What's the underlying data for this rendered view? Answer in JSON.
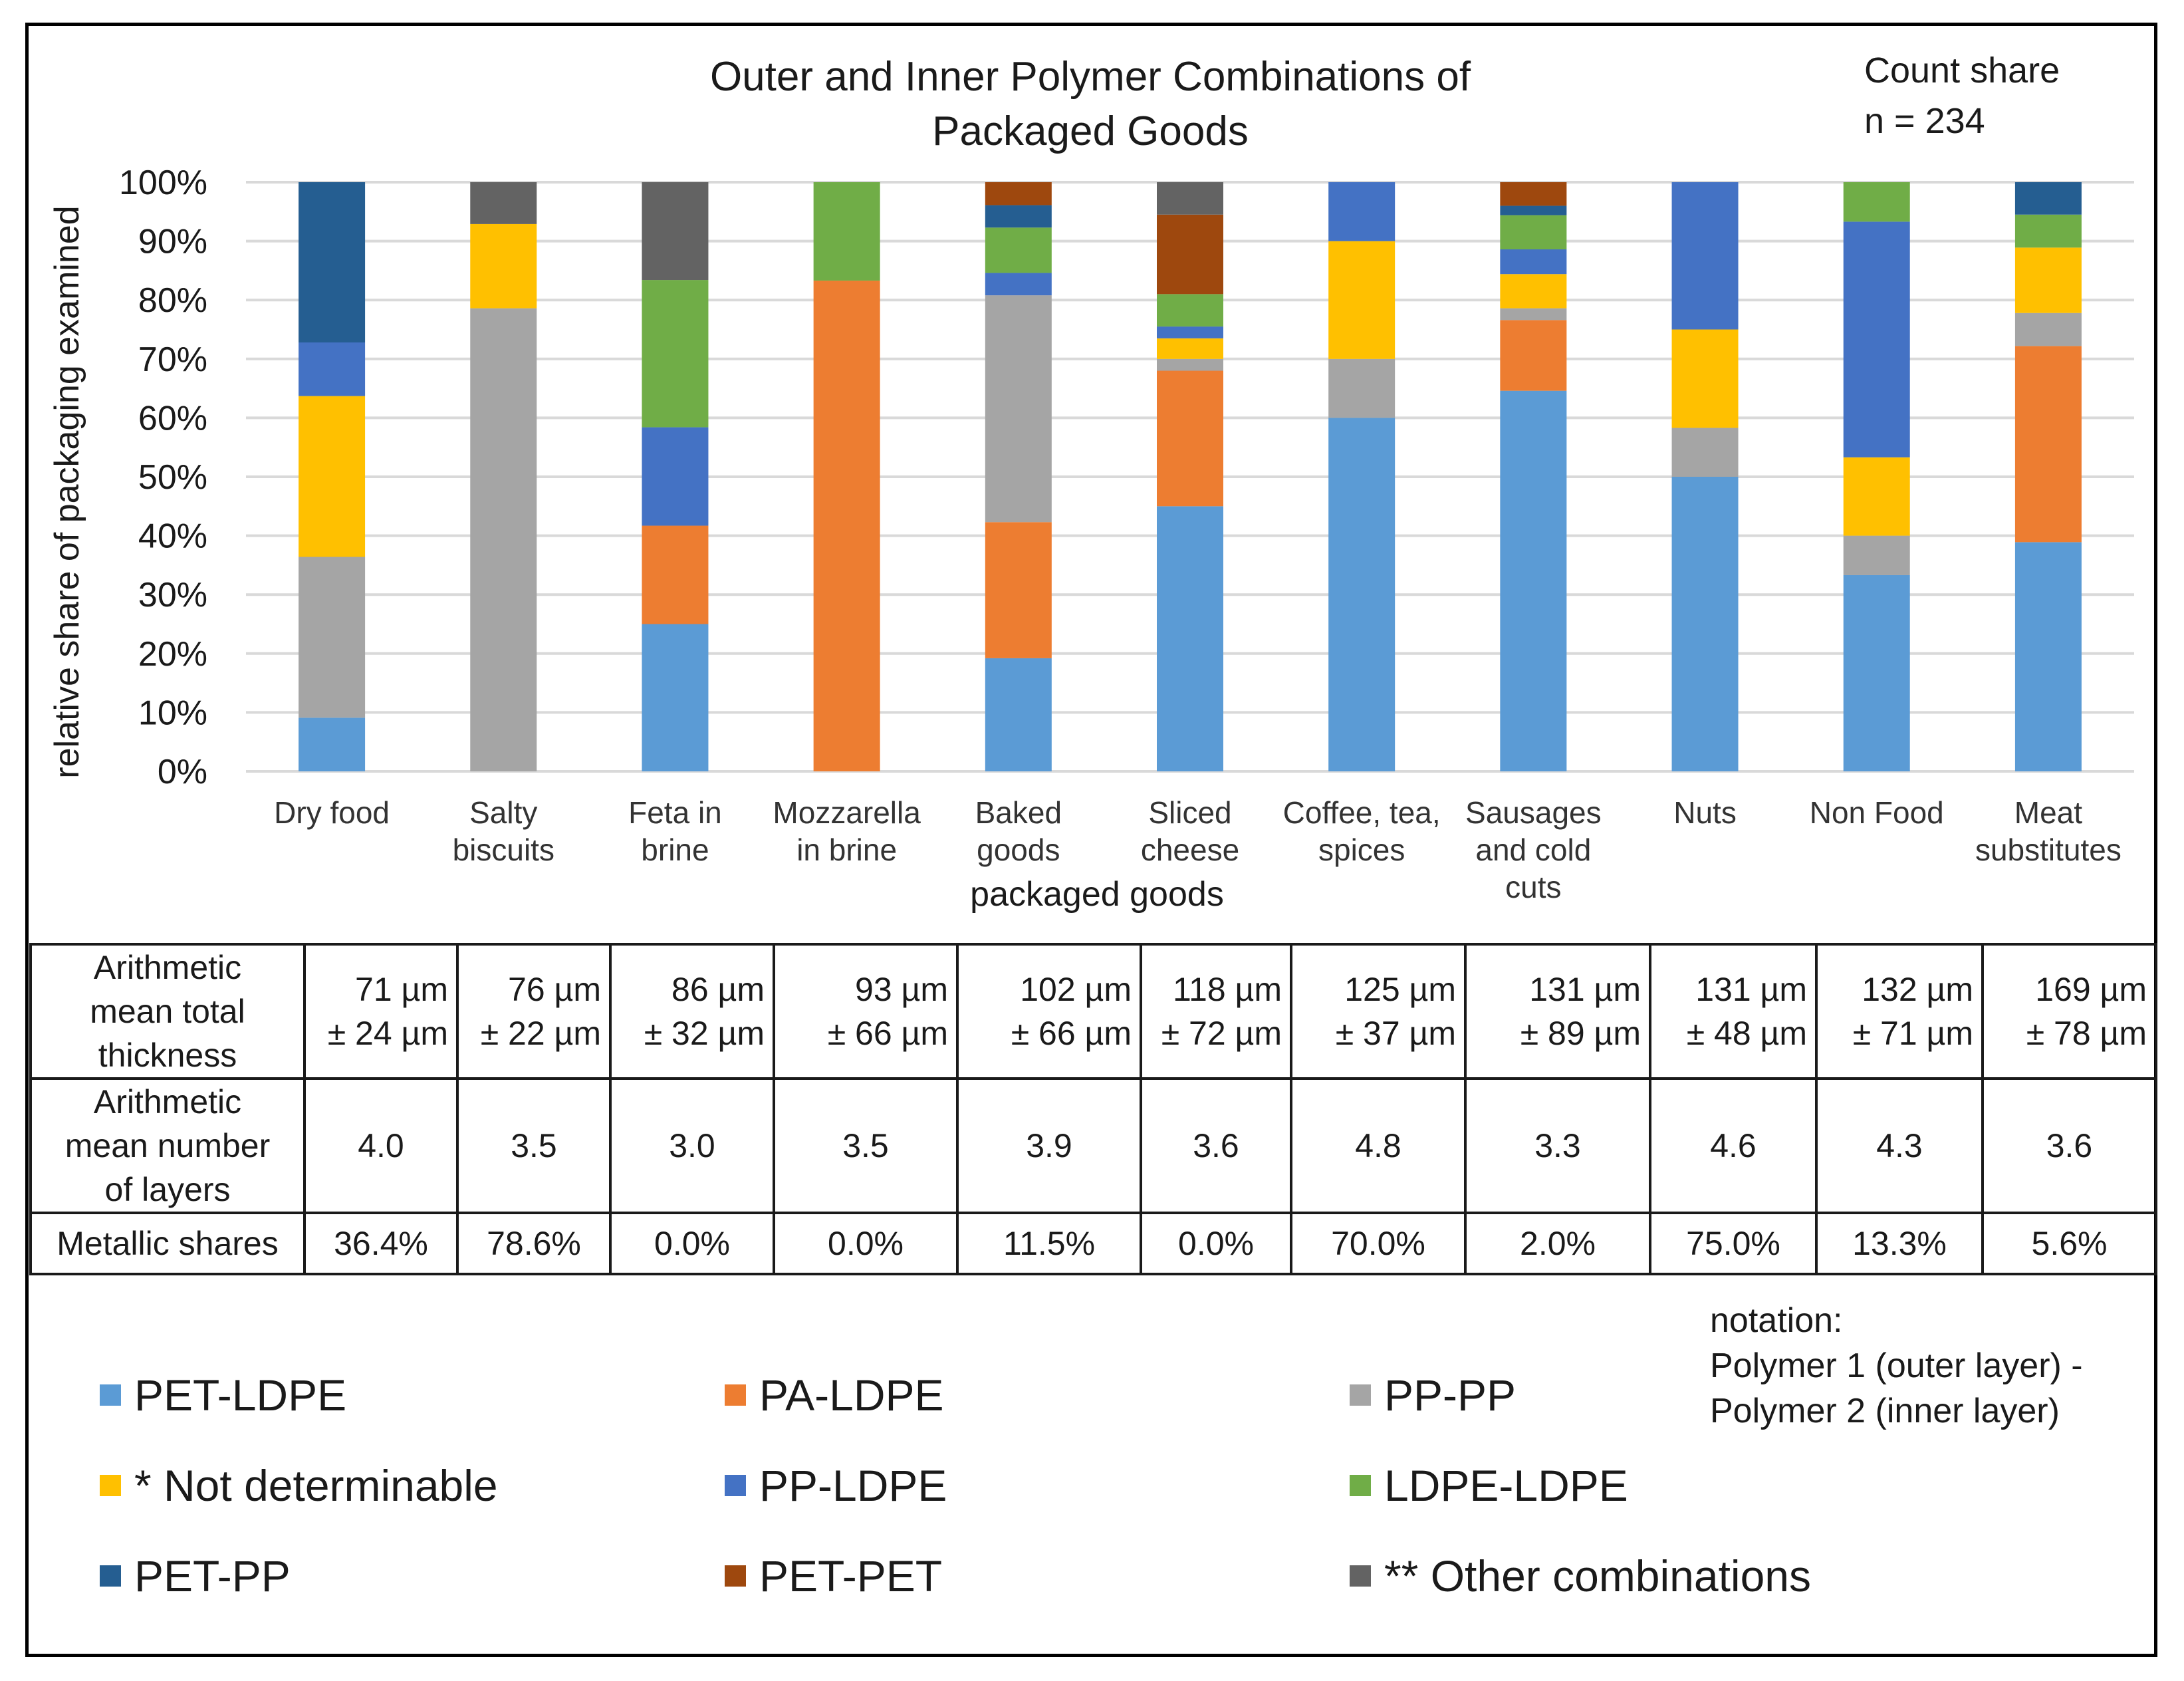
{
  "chart_data": {
    "type": "bar",
    "stacked": true,
    "title_lines": [
      "Outer and Inner Polymer Combinations of",
      "Packaged Goods"
    ],
    "note_lines": [
      "Count share",
      "n = 234"
    ],
    "xlabel": "packaged goods",
    "ylabel": "relative share of packaging examined",
    "ylim": [
      0,
      100
    ],
    "y_ticks": [
      "0%",
      "10%",
      "20%",
      "30%",
      "40%",
      "50%",
      "60%",
      "70%",
      "80%",
      "90%",
      "100%"
    ],
    "grid": true,
    "categories": [
      [
        "Dry food"
      ],
      [
        "Salty",
        "biscuits"
      ],
      [
        "Feta in",
        "brine"
      ],
      [
        "Mozzarella",
        "in brine"
      ],
      [
        "Baked",
        "goods"
      ],
      [
        "Sliced",
        "cheese"
      ],
      [
        "Coffee, tea,",
        "spices"
      ],
      [
        "Sausages",
        "and cold",
        "cuts"
      ],
      [
        "Nuts"
      ],
      [
        "Non Food"
      ],
      [
        "Meat",
        "substitutes"
      ]
    ],
    "series": [
      {
        "name": "PET-LDPE",
        "color": "#5b9bd5",
        "values": [
          9.1,
          0,
          25.0,
          0,
          19.2,
          45.0,
          60.0,
          64.6,
          50.0,
          33.3,
          38.9
        ]
      },
      {
        "name": "PA-LDPE",
        "color": "#ed7d31",
        "values": [
          0,
          0,
          16.7,
          83.3,
          23.1,
          23.0,
          0,
          12.0,
          0,
          0,
          33.3
        ]
      },
      {
        "name": "PP-PP",
        "color": "#a5a5a5",
        "values": [
          27.3,
          78.6,
          0,
          0,
          38.5,
          2.0,
          10.0,
          2.0,
          8.3,
          6.7,
          5.6
        ]
      },
      {
        "name": "* Not determinable",
        "color": "#ffc000",
        "values": [
          27.3,
          14.3,
          0,
          0,
          0,
          3.5,
          20.0,
          5.8,
          16.7,
          13.3,
          11.1
        ]
      },
      {
        "name": "PP-LDPE",
        "color": "#4472c4",
        "values": [
          9.1,
          0,
          16.7,
          0,
          3.8,
          2.0,
          10.0,
          4.2,
          25.0,
          40.0,
          0
        ]
      },
      {
        "name": "LDPE-LDPE",
        "color": "#70ad47",
        "values": [
          0,
          0,
          25.0,
          16.7,
          7.7,
          5.5,
          0,
          5.8,
          0,
          6.7,
          5.6
        ]
      },
      {
        "name": "PET-PP",
        "color": "#255e91",
        "values": [
          27.2,
          0,
          0,
          0,
          3.8,
          0,
          0,
          1.6,
          0,
          0,
          5.5
        ]
      },
      {
        "name": "PET-PET",
        "color": "#9e480e",
        "values": [
          0,
          0,
          0,
          0,
          3.9,
          13.5,
          0,
          4.0,
          0,
          0,
          0
        ]
      },
      {
        "name": "** Other combinations",
        "color": "#636363",
        "values": [
          0,
          7.1,
          16.6,
          0,
          0,
          5.5,
          0,
          0,
          0,
          0,
          0
        ]
      }
    ]
  },
  "table": {
    "rows": [
      {
        "header": [
          "Arithmetic",
          "mean total",
          "thickness"
        ],
        "cells": [
          [
            "71 µm",
            "± 24 µm"
          ],
          [
            "76 µm",
            "± 22 µm"
          ],
          [
            "86 µm",
            "± 32 µm"
          ],
          [
            "93 µm",
            "± 66 µm"
          ],
          [
            "102 µm",
            "± 66 µm"
          ],
          [
            "118 µm",
            "± 72 µm"
          ],
          [
            "125 µm",
            "± 37 µm"
          ],
          [
            "131 µm",
            "± 89 µm"
          ],
          [
            "131 µm",
            "± 48 µm"
          ],
          [
            "132 µm",
            "± 71 µm"
          ],
          [
            "169 µm",
            "± 78 µm"
          ]
        ]
      },
      {
        "header": [
          "Arithmetic",
          "mean  number",
          "of layers"
        ],
        "cells": [
          [
            "4.0"
          ],
          [
            "3.5"
          ],
          [
            "3.0"
          ],
          [
            "3.5"
          ],
          [
            "3.9"
          ],
          [
            "3.6"
          ],
          [
            "4.8"
          ],
          [
            "3.3"
          ],
          [
            "4.6"
          ],
          [
            "4.3"
          ],
          [
            "3.6"
          ]
        ]
      },
      {
        "header": [
          "Metallic  shares"
        ],
        "cells": [
          [
            "36.4%"
          ],
          [
            "78.6%"
          ],
          [
            "0.0%"
          ],
          [
            "0.0%"
          ],
          [
            "11.5%"
          ],
          [
            "0.0%"
          ],
          [
            "70.0%"
          ],
          [
            "2.0%"
          ],
          [
            "75.0%"
          ],
          [
            "13.3%"
          ],
          [
            "5.6%"
          ]
        ]
      }
    ]
  },
  "notation": [
    "notation:",
    "Polymer 1 (outer layer) -",
    "Polymer 2 (inner layer)"
  ]
}
